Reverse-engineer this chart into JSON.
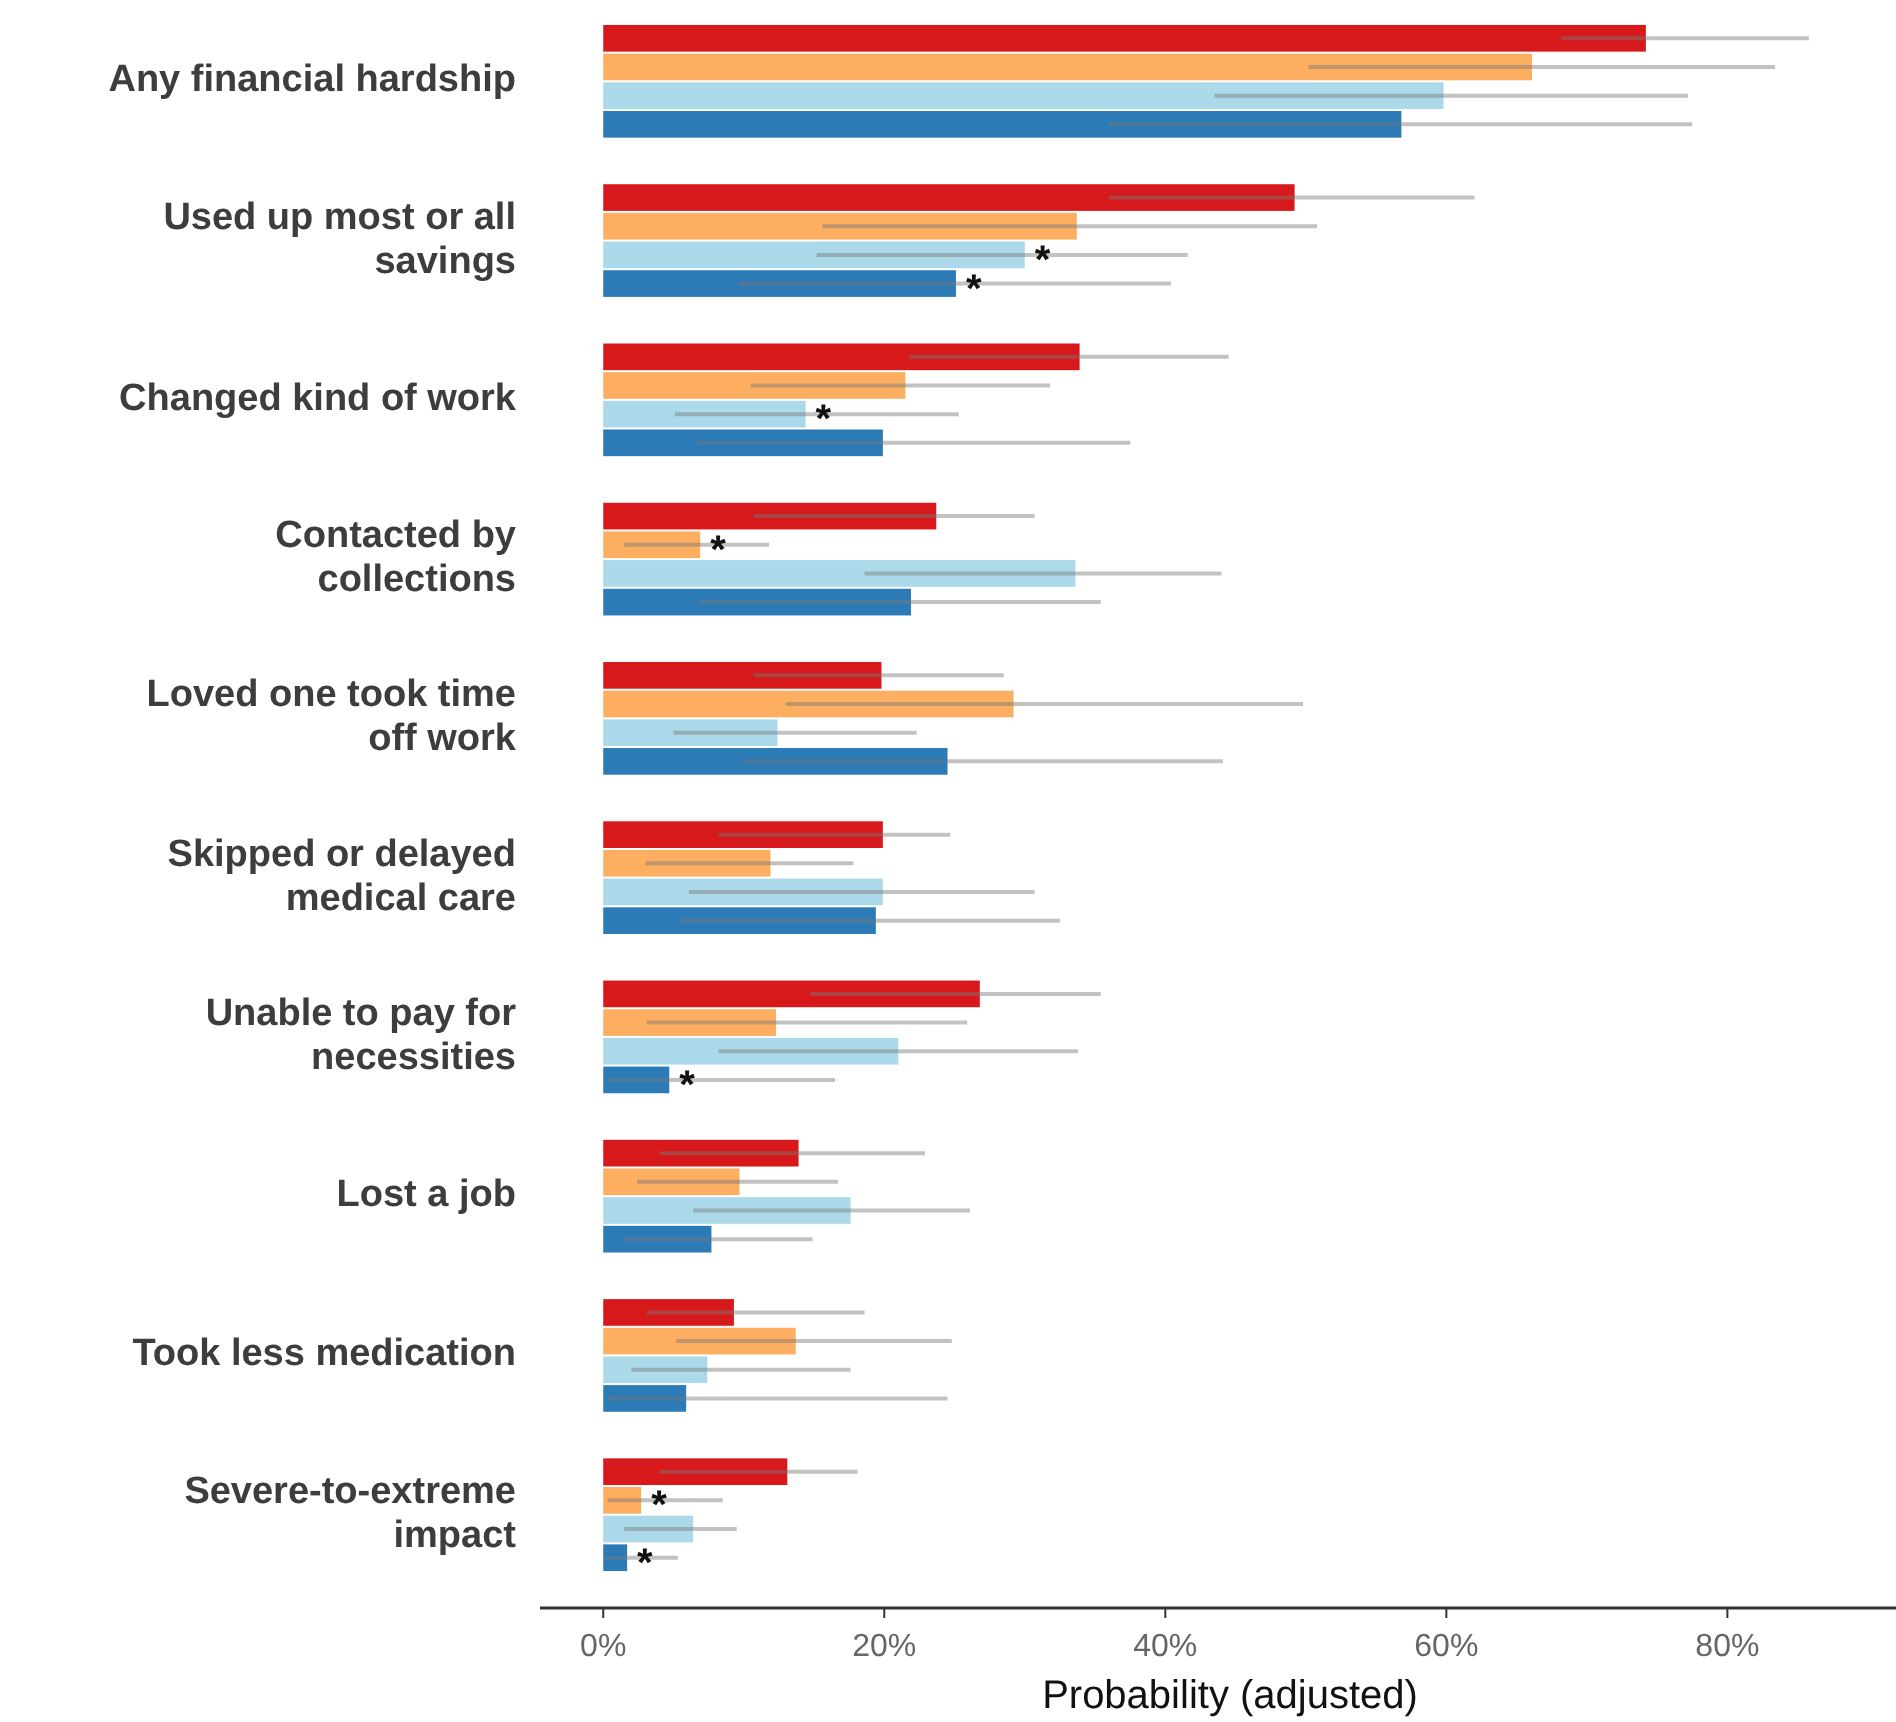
{
  "chart_data": {
    "type": "bar",
    "orientation": "horizontal",
    "xlabel": "Probability (adjusted)",
    "categories": [
      "Any financial hardship",
      "Used up most or all savings",
      "Changed kind of work",
      "Contacted by collections",
      "Loved one took time off work",
      "Skipped or delayed medical care",
      "Unable to pay for necessities",
      "Lost a job",
      "Took less medication",
      "Severe-to-extreme impact"
    ],
    "series": [
      {
        "color": "#d7191c",
        "values": [
          74.2,
          49.2,
          33.9,
          23.7,
          19.8,
          19.9,
          26.8,
          13.9,
          9.3,
          13.1
        ],
        "errors": [
          [
            68.2,
            85.8
          ],
          [
            36.0,
            62.0
          ],
          [
            21.8,
            44.5
          ],
          [
            10.7,
            30.7
          ],
          [
            10.7,
            28.5
          ],
          [
            8.2,
            24.7
          ],
          [
            14.7,
            35.4
          ],
          [
            4.0,
            22.9
          ],
          [
            3.1,
            18.6
          ],
          [
            4.0,
            18.1
          ]
        ]
      },
      {
        "color": "#fdae61",
        "values": [
          66.1,
          33.7,
          21.5,
          6.9,
          29.2,
          11.9,
          12.3,
          9.7,
          13.7,
          2.7
        ],
        "errors": [
          [
            50.2,
            83.4
          ],
          [
            15.6,
            50.8
          ],
          [
            10.5,
            31.8
          ],
          [
            1.5,
            11.8
          ],
          [
            13.0,
            49.8
          ],
          [
            3.0,
            17.8
          ],
          [
            3.1,
            25.9
          ],
          [
            2.4,
            16.7
          ],
          [
            5.2,
            24.8
          ],
          [
            0.3,
            8.5
          ]
        ]
      },
      {
        "color": "#abd9e9",
        "values": [
          59.8,
          30.0,
          14.4,
          33.6,
          12.4,
          19.9,
          21.0,
          17.6,
          7.4,
          6.4
        ],
        "errors": [
          [
            43.5,
            77.2
          ],
          [
            15.2,
            41.6
          ],
          [
            5.1,
            25.3
          ],
          [
            18.6,
            44.0
          ],
          [
            5.0,
            22.3
          ],
          [
            6.1,
            30.7
          ],
          [
            8.2,
            33.8
          ],
          [
            6.4,
            26.1
          ],
          [
            2.0,
            17.6
          ],
          [
            1.5,
            9.5
          ]
        ]
      },
      {
        "color": "#2c7bb6",
        "values": [
          56.8,
          25.1,
          19.9,
          21.9,
          24.5,
          19.4,
          4.7,
          7.7,
          5.9,
          1.7
        ],
        "errors": [
          [
            36.0,
            77.5
          ],
          [
            9.6,
            40.4
          ],
          [
            6.7,
            37.5
          ],
          [
            6.9,
            35.4
          ],
          [
            9.9,
            44.1
          ],
          [
            5.4,
            32.5
          ],
          [
            0.4,
            16.5
          ],
          [
            1.5,
            14.9
          ],
          [
            0.4,
            24.5
          ],
          [
            0.1,
            5.3
          ]
        ]
      }
    ],
    "xlim": [
      -4.5,
      92
    ],
    "xticks": [
      {
        "value": 0,
        "label": "0%"
      },
      {
        "value": 20,
        "label": "20%"
      },
      {
        "value": 40,
        "label": "40%"
      },
      {
        "value": 60,
        "label": "60%"
      },
      {
        "value": 80,
        "label": "80%"
      }
    ],
    "annotations": [
      {
        "text": "*",
        "x": 30.0,
        "y": "Used up most or all savings"
      },
      {
        "text": "*",
        "x": 25.1,
        "y": "Used up most or all savings"
      },
      {
        "text": "*",
        "x": 14.4,
        "y": "Changed kind of work"
      },
      {
        "text": "*",
        "x": 6.9,
        "y": "Contacted by collections"
      },
      {
        "text": "*",
        "x": 4.7,
        "y": "Unable to pay for necessities"
      },
      {
        "text": "*",
        "x": 2.7,
        "y": "Severe-to-extreme impact"
      },
      {
        "text": "*",
        "x": 1.7,
        "y": "Severe-to-extreme impact"
      }
    ]
  }
}
